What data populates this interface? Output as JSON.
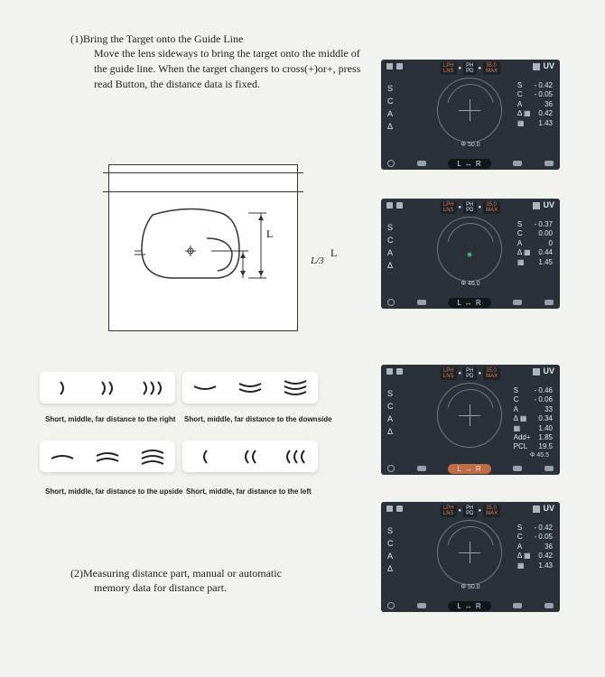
{
  "step1": {
    "heading": "(1)Bring the Target onto the Guide Line",
    "body": "Move the lens sideways to bring the target onto the middle of the guide line. When the target changers to cross(+)or+, press read Button, the distance data is fixed."
  },
  "diagram": {
    "l_label": "L",
    "l3_label": "L/3"
  },
  "arrow_tiles": {
    "right": {
      "label": "Short, middle, far distance to the right"
    },
    "down": {
      "label": "Short, middle, far distance to the downside"
    },
    "up": {
      "label": "Short, middle, far distance to the upside"
    },
    "left": {
      "label": "Short, middle, far distance to the left"
    }
  },
  "step2": {
    "heading": "(2)Measuring distance part, manual or automatic",
    "body": "memory data for distance part."
  },
  "devices": [
    {
      "uv": "UV",
      "header": {
        "left": [
          "LPH",
          "LNS"
        ],
        "mid": [
          "PH",
          "PD"
        ],
        "right": [
          "35.0",
          "MAX"
        ]
      },
      "left_labels": [
        "S",
        "C",
        "A",
        "Δ"
      ],
      "readings": [
        [
          "S",
          "- 0.42"
        ],
        [
          "C",
          "- 0.05"
        ],
        [
          "A",
          "36"
        ],
        [
          "Δ ▦",
          "0.42"
        ],
        [
          "▦",
          "1.43"
        ]
      ],
      "phi": "Φ 50.0",
      "lr": "L ↔ R",
      "lr_hot": false,
      "reticle": "cross"
    },
    {
      "uv": "UV",
      "header": {
        "left": [
          "LPH",
          "LNS"
        ],
        "mid": [
          "PH",
          "PD"
        ],
        "right": [
          "35.0",
          "MAX"
        ]
      },
      "left_labels": [
        "S",
        "C",
        "A",
        "Δ"
      ],
      "readings": [
        [
          "S",
          "- 0.37"
        ],
        [
          "C",
          "0.00"
        ],
        [
          "A",
          "0"
        ],
        [
          "Δ ▦",
          "0.44"
        ],
        [
          "▦",
          "1.45"
        ]
      ],
      "phi": "Φ 46.0",
      "lr": "L ↔ R",
      "lr_hot": false,
      "reticle": "dot"
    },
    {
      "uv": "UV",
      "header": {
        "left": [
          "LPH",
          "LNS"
        ],
        "mid": [
          "PH",
          "PD"
        ],
        "right": [
          "35.0",
          "MAX"
        ]
      },
      "left_labels": [
        "S",
        "C",
        "A",
        "Δ"
      ],
      "readings": [
        [
          "S",
          "- 0.46"
        ],
        [
          "C",
          "- 0.06"
        ],
        [
          "A",
          "33"
        ],
        [
          "Δ ▦",
          "0.34"
        ],
        [
          "▦",
          "1.40"
        ],
        [
          "Add+",
          "1.85"
        ],
        [
          "PCL",
          "19.5"
        ]
      ],
      "phi": "Φ 45.5",
      "phi_side": true,
      "lr": "L ↔ R",
      "lr_hot": true,
      "reticle": "cross"
    },
    {
      "uv": "UV",
      "header": {
        "left": [
          "LPH",
          "LNS"
        ],
        "mid": [
          "PH",
          "PD"
        ],
        "right": [
          "35.0",
          "MAX"
        ]
      },
      "left_labels": [
        "S",
        "C",
        "A",
        "Δ"
      ],
      "readings": [
        [
          "S",
          "- 0.42"
        ],
        [
          "C",
          "- 0.05"
        ],
        [
          "A",
          "36"
        ],
        [
          "Δ ▦",
          "0.42"
        ],
        [
          "▦",
          "1.43"
        ]
      ],
      "phi": "Φ 50.0",
      "lr": "L ↔ R",
      "lr_hot": false,
      "reticle": "cross"
    }
  ],
  "colors": {
    "page_bg": "#f2f3ef",
    "device_bg": "#2a3138",
    "accent": "#c06c48",
    "green": "#4aa567"
  }
}
